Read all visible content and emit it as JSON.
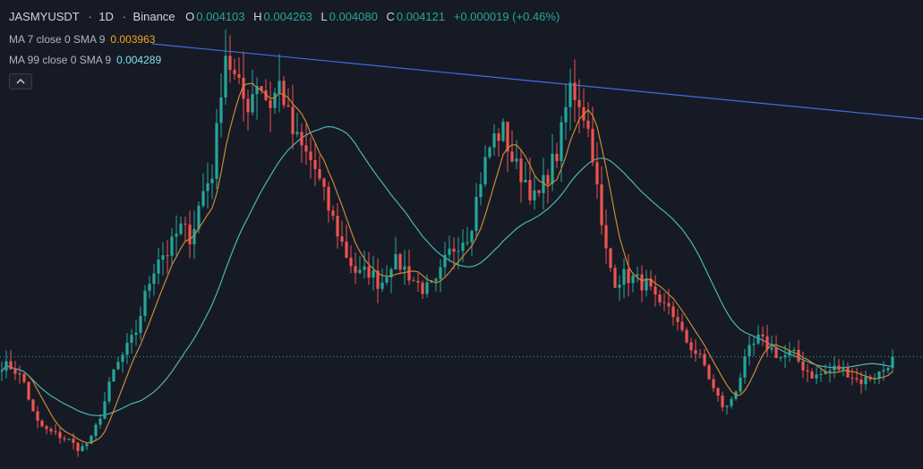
{
  "symbol": "JASMYUSDT",
  "interval": "1D",
  "exchange": "Binance",
  "ohlc": {
    "open_label": "O",
    "open": "0.004103",
    "high_label": "H",
    "high": "0.004263",
    "low_label": "L",
    "low": "0.004080",
    "close_label": "C",
    "close": "0.004121",
    "change": "+0.000019 (+0.46%)"
  },
  "indicators": [
    {
      "label": "MA 7 close 0 SMA 9",
      "value": "0.003963",
      "color": "#f5a623"
    },
    {
      "label": "MA 99 close 0 SMA 9",
      "value": "0.004289",
      "color": "#7ee1ea"
    }
  ],
  "collapse_icon": "chevron-up-icon",
  "colors": {
    "background": "#161a25",
    "up": "#26a69a",
    "down": "#ef5350",
    "trendline": "#3d6ee0",
    "ma7": "#c98a35",
    "ma99": "#4ab5b8",
    "price_line": "#26a69a"
  },
  "chart_data": {
    "type": "candlestick",
    "price_range": [
      0.0018,
      0.0115
    ],
    "last_price": 0.004121,
    "trendline": {
      "start": [
        0,
        0.0101
      ],
      "end": [
        199,
        0.0084
      ]
    },
    "ma7_period": 7,
    "ma99_period": 99,
    "close_path": [
      0.00395,
      0.0039,
      0.0036,
      0.0028,
      0.0026,
      0.0025,
      0.0024,
      0.0022,
      0.0024,
      0.003,
      0.0038,
      0.0042,
      0.0046,
      0.0055,
      0.0062,
      0.0063,
      0.0068,
      0.0066,
      0.0075,
      0.008,
      0.0105,
      0.0098,
      0.0093,
      0.0099,
      0.0093,
      0.0098,
      0.0088,
      0.0084,
      0.0081,
      0.0074,
      0.0068,
      0.0062,
      0.0058,
      0.0059,
      0.0056,
      0.0061,
      0.006,
      0.0057,
      0.0055,
      0.0056,
      0.0062,
      0.0065,
      0.0067,
      0.0078,
      0.0086,
      0.0088,
      0.0081,
      0.0078,
      0.0073,
      0.0079,
      0.0084,
      0.0097,
      0.0094,
      0.0085,
      0.0065,
      0.0057,
      0.0058,
      0.0057,
      0.0056,
      0.0051,
      0.0052,
      0.0046,
      0.0043,
      0.004,
      0.0034,
      0.003,
      0.0035,
      0.0042,
      0.0045,
      0.0043,
      0.0041,
      0.0042,
      0.0039,
      0.0037,
      0.0038,
      0.0039,
      0.0038,
      0.0036,
      0.0037,
      0.0038,
      0.00412
    ],
    "candle_count": 200
  }
}
